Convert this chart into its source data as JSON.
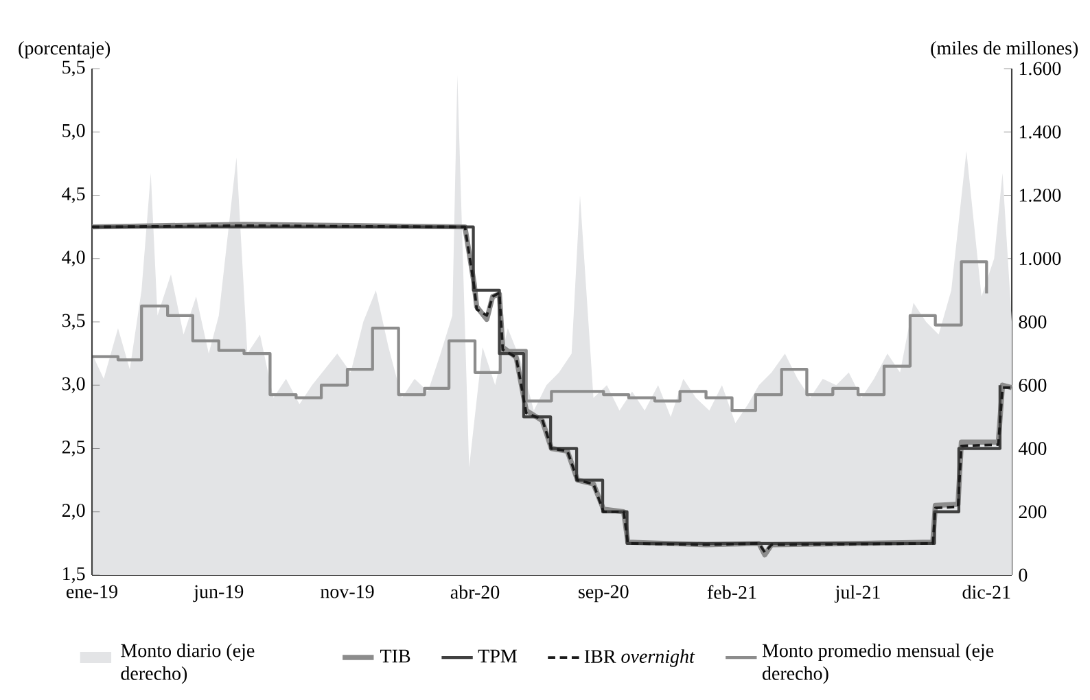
{
  "chart_data": {
    "type": "line",
    "ylabel": "(porcentaje)",
    "y2label": "(miles de millones)",
    "xlim": [
      "2019-01-01",
      "2021-12-31"
    ],
    "xticks": [
      {
        "value": "2019-01-01",
        "label": "ene-19"
      },
      {
        "value": "2019-06-01",
        "label": "jun-19"
      },
      {
        "value": "2019-11-01",
        "label": "nov-19"
      },
      {
        "value": "2020-04-01",
        "label": "abr-20"
      },
      {
        "value": "2020-09-01",
        "label": "sep-20"
      },
      {
        "value": "2021-02-01",
        "label": "feb-21"
      },
      {
        "value": "2021-07-01",
        "label": "jul-21"
      },
      {
        "value": "2021-12-01",
        "label": "dic-21"
      }
    ],
    "ylim": [
      1.5,
      5.5
    ],
    "yticks": [
      {
        "value": 1.5,
        "label": "1,5"
      },
      {
        "value": 2.0,
        "label": "2,0"
      },
      {
        "value": 2.5,
        "label": "2,5"
      },
      {
        "value": 3.0,
        "label": "3,0"
      },
      {
        "value": 3.5,
        "label": "3,5"
      },
      {
        "value": 4.0,
        "label": "4,0"
      },
      {
        "value": 4.5,
        "label": "4,5"
      },
      {
        "value": 5.0,
        "label": "5,0"
      },
      {
        "value": 5.5,
        "label": "5,5"
      }
    ],
    "y2lim": [
      0,
      1600
    ],
    "y2ticks": [
      0,
      200,
      400,
      600,
      800,
      {
        "value": 1000,
        "label": "1.000"
      },
      {
        "value": 1200,
        "label": "1.200"
      },
      {
        "value": 1400,
        "label": "1.400"
      },
      {
        "value": 1600,
        "label": "1.600"
      }
    ],
    "legend": "bottom",
    "grid": false,
    "marker": "none",
    "series": [
      {
        "name": "Monto diario (eje derecho)",
        "type": "area",
        "axis": "y2",
        "color": "#e3e4e6",
        "x": [
          "2019-01-01",
          "2019-01-15",
          "2019-02-01",
          "2019-02-15",
          "2019-03-01",
          "2019-03-12",
          "2019-03-20",
          "2019-04-05",
          "2019-04-20",
          "2019-05-05",
          "2019-05-20",
          "2019-06-01",
          "2019-06-22",
          "2019-07-05",
          "2019-07-20",
          "2019-08-05",
          "2019-08-20",
          "2019-09-05",
          "2019-09-20",
          "2019-10-05",
          "2019-10-20",
          "2019-11-05",
          "2019-11-20",
          "2019-12-05",
          "2019-12-20",
          "2020-01-05",
          "2020-01-20",
          "2020-02-05",
          "2020-02-20",
          "2020-03-05",
          "2020-03-11",
          "2020-03-25",
          "2020-04-10",
          "2020-04-25",
          "2020-05-10",
          "2020-05-25",
          "2020-06-10",
          "2020-06-25",
          "2020-07-10",
          "2020-07-25",
          "2020-08-04",
          "2020-08-20",
          "2020-09-05",
          "2020-09-20",
          "2020-10-05",
          "2020-10-20",
          "2020-11-05",
          "2020-11-20",
          "2020-12-05",
          "2020-12-20",
          "2021-01-05",
          "2021-01-20",
          "2021-02-05",
          "2021-02-20",
          "2021-03-05",
          "2021-03-20",
          "2021-04-05",
          "2021-04-20",
          "2021-05-05",
          "2021-05-20",
          "2021-06-05",
          "2021-06-20",
          "2021-07-05",
          "2021-07-20",
          "2021-08-05",
          "2021-08-20",
          "2021-09-05",
          "2021-09-20",
          "2021-10-05",
          "2021-10-20",
          "2021-11-07",
          "2021-11-25",
          "2021-12-10",
          "2021-12-20",
          "2021-12-31"
        ],
        "values": [
          700,
          620,
          780,
          650,
          900,
          1270,
          820,
          950,
          760,
          880,
          700,
          820,
          1320,
          700,
          760,
          560,
          620,
          540,
          600,
          650,
          700,
          640,
          800,
          900,
          720,
          560,
          620,
          580,
          700,
          820,
          1580,
          340,
          720,
          600,
          780,
          680,
          520,
          600,
          640,
          700,
          1200,
          560,
          600,
          520,
          580,
          520,
          600,
          500,
          620,
          560,
          520,
          600,
          480,
          540,
          600,
          640,
          700,
          620,
          560,
          620,
          600,
          640,
          560,
          620,
          700,
          640,
          860,
          800,
          760,
          900,
          1340,
          880,
          1000,
          1270,
          800
        ]
      },
      {
        "name": "TIB",
        "color": "#8c8c8c",
        "x": [
          "2019-01-01",
          "2019-07-01",
          "2020-03-20",
          "2020-03-31",
          "2020-04-03",
          "2020-04-15",
          "2020-04-22",
          "2020-04-30",
          "2020-05-04",
          "2020-05-20",
          "2020-06-01",
          "2020-06-20",
          "2020-07-01",
          "2020-07-20",
          "2020-08-01",
          "2020-08-20",
          "2020-09-01",
          "2020-09-25",
          "2020-09-30",
          "2021-01-01",
          "2021-03-05",
          "2021-03-12",
          "2021-03-20",
          "2021-09-28",
          "2021-10-01",
          "2021-10-28",
          "2021-11-01",
          "2021-12-15",
          "2021-12-20",
          "2021-12-31"
        ],
        "values": [
          4.25,
          4.27,
          4.25,
          3.8,
          3.62,
          3.52,
          3.7,
          3.72,
          3.3,
          3.22,
          2.8,
          2.72,
          2.5,
          2.48,
          2.25,
          2.22,
          2.02,
          2.0,
          1.76,
          1.74,
          1.75,
          1.66,
          1.74,
          1.76,
          2.05,
          2.06,
          2.55,
          2.55,
          3.0,
          2.98
        ]
      },
      {
        "name": "TPM",
        "type": "step",
        "color": "#404040",
        "x": [
          "2019-01-01",
          "2020-03-30",
          "2020-04-30",
          "2020-05-29",
          "2020-06-30",
          "2020-07-31",
          "2020-08-31",
          "2020-09-29",
          "2021-09-30",
          "2021-10-29",
          "2021-12-17"
        ],
        "values": [
          4.25,
          3.75,
          3.25,
          2.75,
          2.5,
          2.25,
          2.0,
          1.75,
          2.0,
          2.5,
          3.0
        ]
      },
      {
        "name": "IBR *overnight*",
        "line_style": "dashed",
        "color": "#1a1a1a",
        "x": [
          "2019-01-01",
          "2019-07-01",
          "2020-03-20",
          "2020-03-31",
          "2020-04-03",
          "2020-04-15",
          "2020-04-22",
          "2020-04-30",
          "2020-05-04",
          "2020-05-20",
          "2020-06-01",
          "2020-06-20",
          "2020-07-01",
          "2020-07-20",
          "2020-08-01",
          "2020-08-20",
          "2020-09-01",
          "2020-09-25",
          "2020-09-30",
          "2021-01-01",
          "2021-03-05",
          "2021-03-12",
          "2021-03-20",
          "2021-09-28",
          "2021-10-01",
          "2021-10-28",
          "2021-11-01",
          "2021-12-15",
          "2021-12-20",
          "2021-12-31"
        ],
        "values": [
          4.25,
          4.26,
          4.25,
          3.78,
          3.6,
          3.55,
          3.7,
          3.73,
          3.28,
          3.22,
          2.78,
          2.73,
          2.5,
          2.48,
          2.25,
          2.22,
          2.0,
          2.0,
          1.75,
          1.74,
          1.75,
          1.68,
          1.74,
          1.75,
          2.03,
          2.04,
          2.52,
          2.53,
          2.98,
          2.98
        ]
      },
      {
        "name": "Monto promedio mensual (eje derecho)",
        "type": "step",
        "axis": "y2",
        "color": "#8c8c8c",
        "x": [
          "2019-01-01",
          "2019-02-01",
          "2019-03-01",
          "2019-04-01",
          "2019-05-01",
          "2019-06-01",
          "2019-07-01",
          "2019-08-01",
          "2019-09-01",
          "2019-10-01",
          "2019-11-01",
          "2019-12-01",
          "2020-01-01",
          "2020-02-01",
          "2020-03-01",
          "2020-04-01",
          "2020-05-01",
          "2020-06-01",
          "2020-07-01",
          "2020-08-01",
          "2020-09-01",
          "2020-10-01",
          "2020-11-01",
          "2020-12-01",
          "2021-01-01",
          "2021-02-01",
          "2021-03-01",
          "2021-04-01",
          "2021-05-01",
          "2021-06-01",
          "2021-07-01",
          "2021-08-01",
          "2021-09-01",
          "2021-10-01",
          "2021-11-01",
          "2021-12-01"
        ],
        "values": [
          690,
          680,
          850,
          820,
          740,
          710,
          700,
          570,
          560,
          600,
          650,
          780,
          570,
          590,
          740,
          640,
          710,
          550,
          580,
          580,
          570,
          560,
          550,
          580,
          560,
          520,
          570,
          650,
          570,
          590,
          570,
          660,
          820,
          790,
          990,
          890
        ]
      }
    ]
  }
}
